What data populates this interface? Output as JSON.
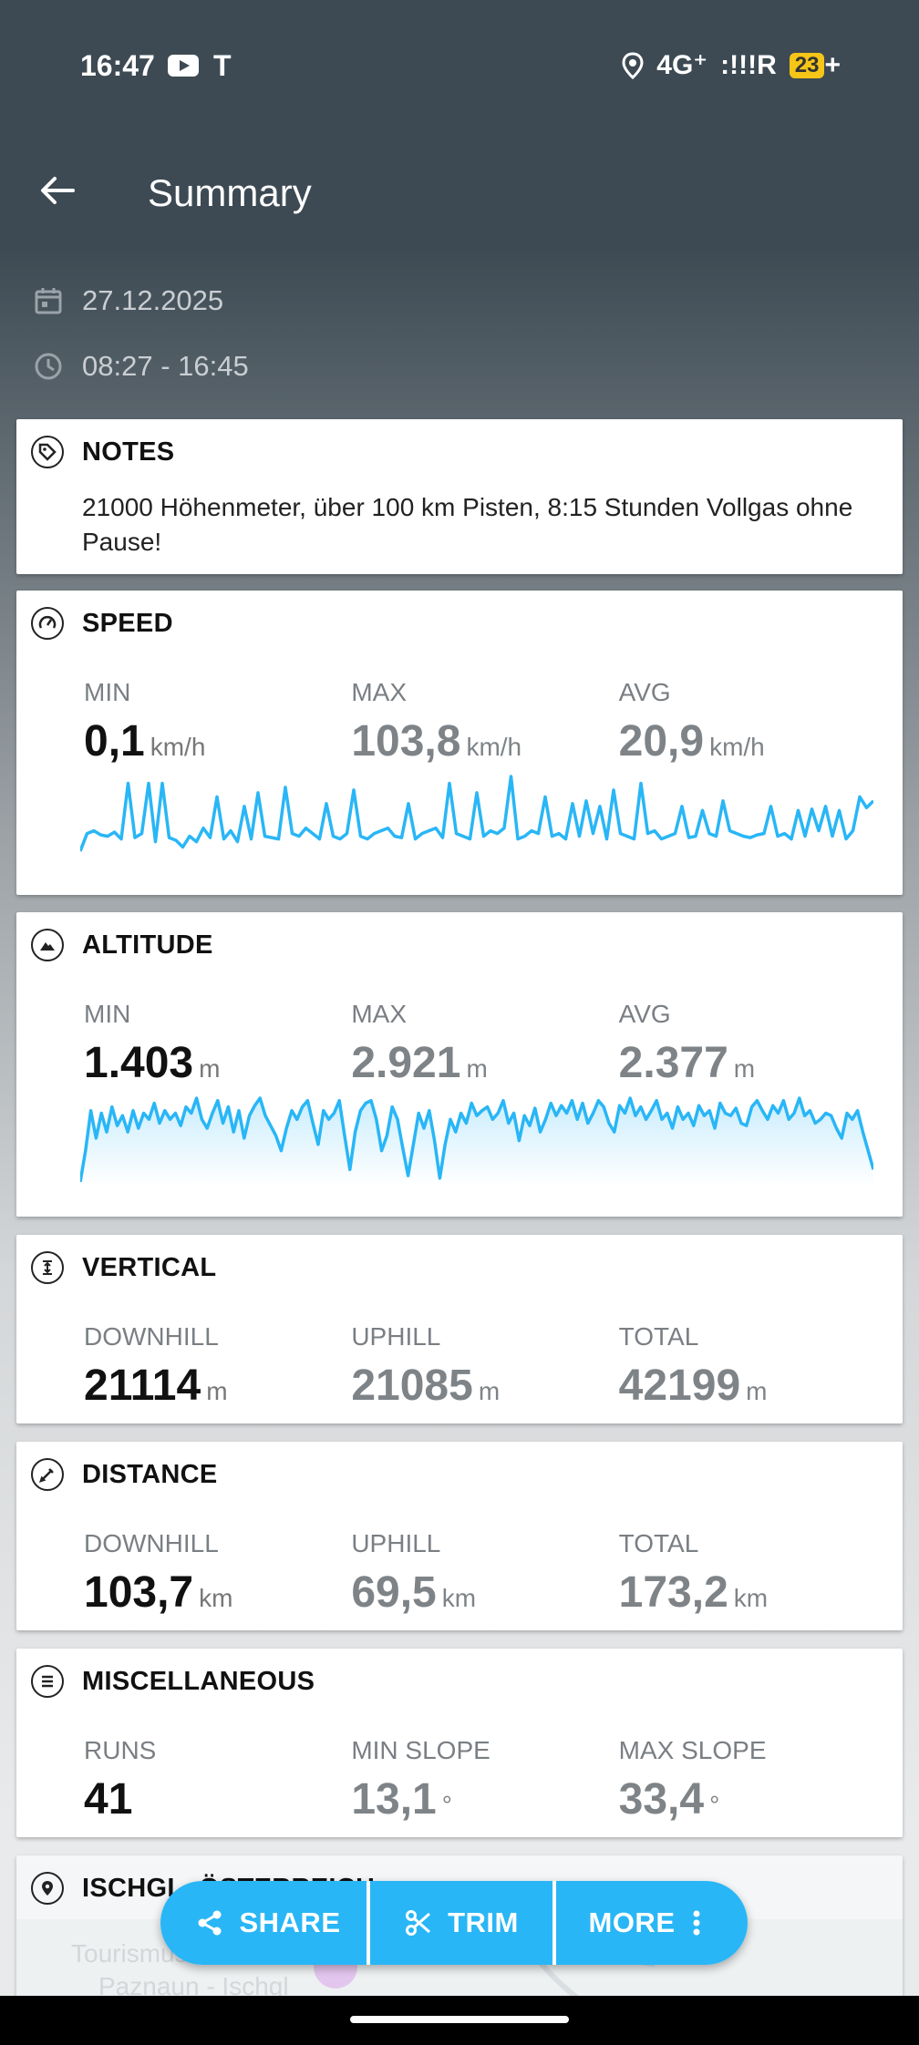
{
  "status": {
    "time": "16:47",
    "network": "4G⁺",
    "signal": ":!!!R",
    "battery": "23",
    "plus": "+",
    "tesla": "T"
  },
  "appbar": {
    "title": "Summary"
  },
  "meta": {
    "date": "27.12.2025",
    "time_range": "08:27 - 16:45"
  },
  "notes": {
    "label": "NOTES",
    "text": "21000 Höhenmeter, über 100 km Pisten, 8:15 Stunden Vollgas ohne Pause!"
  },
  "speed": {
    "label": "SPEED",
    "stats": [
      {
        "key": "MIN",
        "value": "0,1",
        "unit": "km/h"
      },
      {
        "key": "MAX",
        "value": "103,8",
        "unit": "km/h"
      },
      {
        "key": "AVG",
        "value": "20,9",
        "unit": "km/h"
      }
    ],
    "spark": [
      5,
      18,
      20,
      17,
      16,
      19,
      14,
      55,
      15,
      18,
      55,
      12,
      55,
      15,
      13,
      8,
      16,
      12,
      22,
      15,
      45,
      14,
      20,
      12,
      38,
      14,
      48,
      16,
      15,
      14,
      52,
      18,
      16,
      22,
      18,
      14,
      40,
      16,
      14,
      18,
      50,
      16,
      14,
      18,
      20,
      22,
      16,
      15,
      40,
      14,
      18,
      20,
      22,
      15,
      55,
      18,
      16,
      14,
      48,
      16,
      20,
      18,
      22,
      60,
      14,
      16,
      20,
      18,
      45,
      16,
      18,
      14,
      40,
      16,
      42,
      18,
      38,
      14,
      50,
      18,
      16,
      14,
      55,
      18,
      20,
      14,
      16,
      18,
      38,
      15,
      16,
      35,
      18,
      16,
      42,
      20,
      18,
      16,
      15,
      17,
      18,
      38,
      16,
      18,
      14,
      35,
      16,
      36,
      20,
      38,
      16,
      35,
      14,
      20,
      45,
      37,
      42
    ],
    "color": "#29b6f6"
  },
  "altitude": {
    "label": "ALTITUDE",
    "stats": [
      {
        "key": "MIN",
        "value": "1.403",
        "unit": "m"
      },
      {
        "key": "MAX",
        "value": "2.921",
        "unit": "m"
      },
      {
        "key": "AVG",
        "value": "2.377",
        "unit": "m"
      }
    ],
    "spark": [
      5,
      30,
      62,
      40,
      60,
      45,
      65,
      50,
      58,
      45,
      62,
      48,
      60,
      55,
      68,
      52,
      62,
      55,
      60,
      50,
      65,
      60,
      72,
      55,
      48,
      60,
      70,
      52,
      65,
      45,
      62,
      40,
      58,
      66,
      72,
      58,
      50,
      42,
      30,
      48,
      62,
      55,
      65,
      70,
      52,
      35,
      62,
      55,
      60,
      70,
      42,
      15,
      45,
      62,
      68,
      70,
      55,
      30,
      42,
      65,
      55,
      32,
      10,
      35,
      60,
      48,
      62,
      38,
      8,
      35,
      55,
      45,
      60,
      52,
      68,
      58,
      62,
      65,
      55,
      60,
      70,
      52,
      60,
      38,
      58,
      50,
      64,
      45,
      55,
      68,
      58,
      66,
      60,
      70,
      55,
      68,
      52,
      60,
      70,
      65,
      52,
      45,
      66,
      60,
      72,
      58,
      65,
      55,
      62,
      70,
      55,
      60,
      48,
      65,
      55,
      60,
      50,
      66,
      58,
      62,
      48,
      68,
      60,
      58,
      64,
      52,
      50,
      65,
      70,
      62,
      55,
      66,
      60,
      70,
      55,
      60,
      72,
      58,
      62,
      52,
      55,
      60,
      58,
      48,
      40,
      60,
      55,
      62,
      45,
      30,
      15
    ]
  },
  "vertical": {
    "label": "VERTICAL",
    "stats": [
      {
        "key": "DOWNHILL",
        "value": "21114",
        "unit": "m"
      },
      {
        "key": "UPHILL",
        "value": "21085",
        "unit": "m"
      },
      {
        "key": "TOTAL",
        "value": "42199",
        "unit": "m"
      }
    ]
  },
  "distance": {
    "label": "DISTANCE",
    "stats": [
      {
        "key": "DOWNHILL",
        "value": "103,7",
        "unit": "km"
      },
      {
        "key": "UPHILL",
        "value": "69,5",
        "unit": "km"
      },
      {
        "key": "TOTAL",
        "value": "173,2",
        "unit": "km"
      }
    ]
  },
  "misc": {
    "label": "MISCELLANEOUS",
    "stats": [
      {
        "key": "RUNS",
        "value": "41",
        "unit": ""
      },
      {
        "key": "MIN SLOPE",
        "value": "13,1",
        "unit": "°"
      },
      {
        "key": "MAX SLOPE",
        "value": "33,4",
        "unit": "°"
      }
    ]
  },
  "location": {
    "label": "ISCHGL, ÖSTERREICH",
    "map_text_1": "Tourismusverband",
    "map_text_2": "Paznaun - Ischgl"
  },
  "actions": {
    "share": "SHARE",
    "trim": "TRIM",
    "more": "MORE"
  }
}
